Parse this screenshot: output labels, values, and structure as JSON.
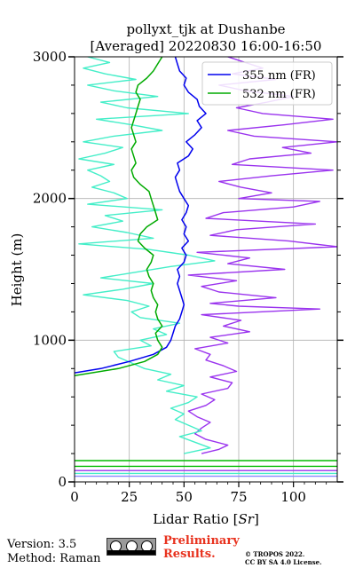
{
  "chart_data": {
    "type": "line",
    "title_line1": "pollyxt_tjk at Dushanbe",
    "title_line2": "[Averaged] 20220830 16:00-16:50",
    "xlabel_text": "Lidar Ratio [",
    "xlabel_unit": "Sr",
    "xlabel_close": "]",
    "ylabel": "Height (m)",
    "xlim": [
      0,
      120
    ],
    "ylim": [
      0,
      3000
    ],
    "xticks": [
      0,
      25,
      50,
      75,
      100
    ],
    "yticks": [
      0,
      1000,
      2000,
      3000
    ],
    "grid": true,
    "legend_position": "top-right",
    "series": [
      {
        "name": "355 nm (FR)",
        "color": "#0000ee",
        "y": [
          770,
          800,
          850,
          900,
          950,
          1000,
          1050,
          1100,
          1150,
          1200,
          1250,
          1300,
          1350,
          1400,
          1450,
          1500,
          1550,
          1600,
          1650,
          1700,
          1750,
          1800,
          1850,
          1900,
          1950,
          2000,
          2050,
          2100,
          2150,
          2200,
          2250,
          2300,
          2350,
          2400,
          2450,
          2500,
          2550,
          2600,
          2650,
          2700,
          2750,
          2800,
          2850,
          2900,
          2950,
          3000
        ],
        "x": [
          0,
          12,
          25,
          36,
          42,
          44,
          45,
          46,
          48,
          49,
          50,
          49,
          48,
          47,
          48,
          47,
          50,
          51,
          49,
          52,
          50,
          51,
          49,
          51,
          52,
          50,
          48,
          47,
          46,
          48,
          47,
          52,
          54,
          51,
          55,
          58,
          56,
          60,
          57,
          56,
          52,
          50,
          51,
          48,
          47,
          46
        ]
      },
      {
        "name": "532 nm (FR)",
        "color": "#00aa00",
        "y": [
          750,
          800,
          850,
          900,
          950,
          1000,
          1050,
          1100,
          1150,
          1200,
          1250,
          1300,
          1350,
          1400,
          1450,
          1500,
          1550,
          1600,
          1650,
          1700,
          1750,
          1800,
          1850,
          1900,
          1950,
          2000,
          2050,
          2100,
          2150,
          2200,
          2250,
          2300,
          2350,
          2400,
          2450,
          2500,
          2550,
          2600,
          2650,
          2700,
          2750,
          2800,
          2850,
          2900,
          2950,
          3000
        ],
        "x": [
          0,
          20,
          32,
          38,
          40,
          38,
          37,
          40,
          38,
          37,
          38,
          36,
          35,
          36,
          34,
          33,
          35,
          36,
          32,
          29,
          30,
          33,
          38,
          37,
          36,
          35,
          34,
          30,
          27,
          26,
          28,
          27,
          26,
          28,
          27,
          26,
          27,
          28,
          29,
          30,
          28,
          29,
          33,
          36,
          38,
          40
        ]
      }
    ],
    "extra_lines": [
      {
        "color": "#9a33ee",
        "y": [
          200,
          230,
          260,
          300,
          340,
          380,
          420,
          460,
          500,
          540,
          580,
          620,
          660,
          700,
          740,
          780,
          820,
          860,
          900,
          940,
          980,
          1020,
          1060,
          1100,
          1140,
          1180,
          1220,
          1240,
          1260,
          1300,
          1340,
          1380,
          1420,
          1460,
          1500,
          1540,
          1580,
          1620,
          1660,
          1700,
          1740,
          1780,
          1820,
          1860,
          1900,
          1940,
          1980,
          2000,
          2040,
          2080,
          2120,
          2160,
          2200,
          2240,
          2280,
          2320,
          2360,
          2400,
          2440,
          2480,
          2520,
          2560,
          2600,
          2640,
          2680,
          2720,
          2760,
          2800,
          2840,
          2880,
          2920,
          2960,
          3000
        ],
        "x": [
          58,
          66,
          70,
          60,
          55,
          58,
          62,
          56,
          52,
          60,
          64,
          58,
          70,
          72,
          62,
          74,
          68,
          60,
          62,
          55,
          70,
          62,
          80,
          68,
          76,
          58,
          112,
          75,
          62,
          92,
          66,
          58,
          74,
          52,
          96,
          70,
          80,
          56,
          120,
          98,
          62,
          74,
          110,
          60,
          68,
          100,
          112,
          75,
          90,
          76,
          66,
          90,
          118,
          72,
          80,
          108,
          95,
          120,
          82,
          70,
          96,
          118,
          86,
          74,
          88,
          100,
          78,
          66,
          92,
          72,
          86,
          78,
          70
        ]
      },
      {
        "color": "#44eec8",
        "y": [
          200,
          240,
          280,
          320,
          360,
          400,
          440,
          480,
          520,
          560,
          600,
          640,
          680,
          720,
          760,
          800,
          840,
          880,
          920,
          960,
          1000,
          1040,
          1080,
          1120,
          1160,
          1200,
          1240,
          1280,
          1320,
          1360,
          1400,
          1440,
          1480,
          1520,
          1560,
          1600,
          1640,
          1680,
          1720,
          1760,
          1800,
          1840,
          1880,
          1920,
          1960,
          2000,
          2040,
          2080,
          2120,
          2160,
          2200,
          2240,
          2280,
          2320,
          2360,
          2400,
          2440,
          2480,
          2520,
          2560,
          2600,
          2640,
          2680,
          2720,
          2760,
          2800,
          2840,
          2880,
          2920,
          2960,
          3000
        ],
        "x": [
          50,
          62,
          55,
          48,
          58,
          52,
          46,
          50,
          44,
          52,
          56,
          42,
          50,
          38,
          44,
          32,
          26,
          20,
          18,
          35,
          30,
          42,
          36,
          48,
          30,
          26,
          34,
          24,
          4,
          22,
          36,
          12,
          28,
          44,
          64,
          52,
          34,
          2,
          36,
          24,
          8,
          22,
          14,
          40,
          6,
          24,
          18,
          8,
          16,
          12,
          6,
          18,
          2,
          14,
          22,
          4,
          18,
          40,
          26,
          10,
          52,
          24,
          12,
          38,
          18,
          6,
          28,
          14,
          4,
          16,
          6
        ]
      },
      {
        "color": "#00bb00",
        "y": [
          150,
          150
        ],
        "x": [
          0,
          120
        ]
      },
      {
        "color": "#00bb00",
        "y": [
          110,
          110
        ],
        "x": [
          0,
          120
        ]
      },
      {
        "color": "#9a33ee",
        "y": [
          80,
          80
        ],
        "x": [
          0,
          120
        ]
      },
      {
        "color": "#44eec8",
        "y": [
          60,
          60
        ],
        "x": [
          0,
          120
        ]
      },
      {
        "color": "#8888ff",
        "y": [
          40,
          40
        ],
        "x": [
          0,
          120
        ]
      }
    ]
  },
  "footer": {
    "version": "Version: 3.5",
    "method": "Method: Raman",
    "preliminary_line1": "Preliminary",
    "preliminary_line2": "Results.",
    "copyright_line1": "© TROPOS 2022.",
    "copyright_line2": "CC BY SA 4.0 License."
  },
  "colors": {
    "preliminary": "#e8321e"
  },
  "icons": {
    "license_badge": "cc-by-sa-icon"
  }
}
